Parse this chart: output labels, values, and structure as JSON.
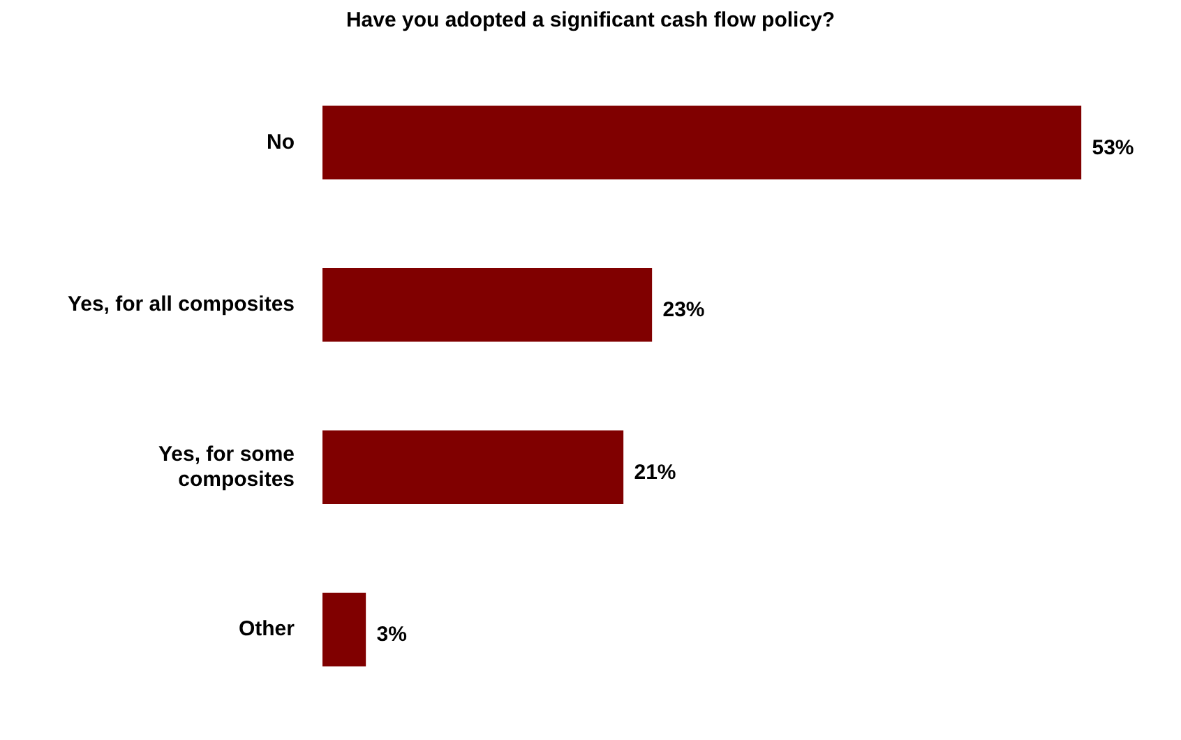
{
  "chart_data": {
    "type": "bar",
    "orientation": "horizontal",
    "title": "Have you adopted a significant cash flow policy?",
    "categories": [
      "No",
      "Yes, for all composites",
      "Yes, for some composites",
      "Other"
    ],
    "values": [
      53,
      23,
      21,
      3
    ],
    "value_labels": [
      "53%",
      "23%",
      "21%",
      "3%"
    ],
    "color": "#800000"
  }
}
